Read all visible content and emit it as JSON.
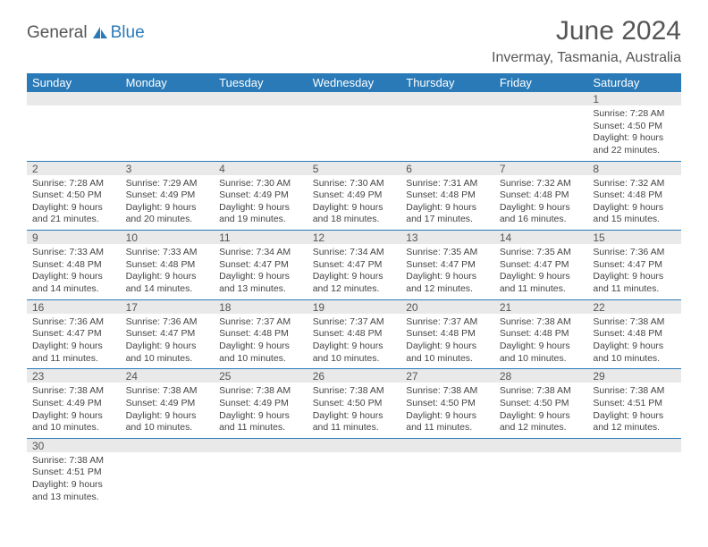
{
  "logo": {
    "text1": "General",
    "text2": "Blue"
  },
  "title": "June 2024",
  "location": "Invermay, Tasmania, Australia",
  "columns": [
    "Sunday",
    "Monday",
    "Tuesday",
    "Wednesday",
    "Thursday",
    "Friday",
    "Saturday"
  ],
  "colors": {
    "header_bg": "#2a7ab8",
    "header_fg": "#ffffff",
    "daynum_bg": "#e9e9e9",
    "row_border": "#2a7ab8",
    "logo_accent": "#2a7ab8",
    "text": "#444444"
  },
  "weeks": [
    [
      null,
      null,
      null,
      null,
      null,
      null,
      {
        "n": "1",
        "sunrise": "Sunrise: 7:28 AM",
        "sunset": "Sunset: 4:50 PM",
        "day1": "Daylight: 9 hours",
        "day2": "and 22 minutes."
      }
    ],
    [
      {
        "n": "2",
        "sunrise": "Sunrise: 7:28 AM",
        "sunset": "Sunset: 4:50 PM",
        "day1": "Daylight: 9 hours",
        "day2": "and 21 minutes."
      },
      {
        "n": "3",
        "sunrise": "Sunrise: 7:29 AM",
        "sunset": "Sunset: 4:49 PM",
        "day1": "Daylight: 9 hours",
        "day2": "and 20 minutes."
      },
      {
        "n": "4",
        "sunrise": "Sunrise: 7:30 AM",
        "sunset": "Sunset: 4:49 PM",
        "day1": "Daylight: 9 hours",
        "day2": "and 19 minutes."
      },
      {
        "n": "5",
        "sunrise": "Sunrise: 7:30 AM",
        "sunset": "Sunset: 4:49 PM",
        "day1": "Daylight: 9 hours",
        "day2": "and 18 minutes."
      },
      {
        "n": "6",
        "sunrise": "Sunrise: 7:31 AM",
        "sunset": "Sunset: 4:48 PM",
        "day1": "Daylight: 9 hours",
        "day2": "and 17 minutes."
      },
      {
        "n": "7",
        "sunrise": "Sunrise: 7:32 AM",
        "sunset": "Sunset: 4:48 PM",
        "day1": "Daylight: 9 hours",
        "day2": "and 16 minutes."
      },
      {
        "n": "8",
        "sunrise": "Sunrise: 7:32 AM",
        "sunset": "Sunset: 4:48 PM",
        "day1": "Daylight: 9 hours",
        "day2": "and 15 minutes."
      }
    ],
    [
      {
        "n": "9",
        "sunrise": "Sunrise: 7:33 AM",
        "sunset": "Sunset: 4:48 PM",
        "day1": "Daylight: 9 hours",
        "day2": "and 14 minutes."
      },
      {
        "n": "10",
        "sunrise": "Sunrise: 7:33 AM",
        "sunset": "Sunset: 4:48 PM",
        "day1": "Daylight: 9 hours",
        "day2": "and 14 minutes."
      },
      {
        "n": "11",
        "sunrise": "Sunrise: 7:34 AM",
        "sunset": "Sunset: 4:47 PM",
        "day1": "Daylight: 9 hours",
        "day2": "and 13 minutes."
      },
      {
        "n": "12",
        "sunrise": "Sunrise: 7:34 AM",
        "sunset": "Sunset: 4:47 PM",
        "day1": "Daylight: 9 hours",
        "day2": "and 12 minutes."
      },
      {
        "n": "13",
        "sunrise": "Sunrise: 7:35 AM",
        "sunset": "Sunset: 4:47 PM",
        "day1": "Daylight: 9 hours",
        "day2": "and 12 minutes."
      },
      {
        "n": "14",
        "sunrise": "Sunrise: 7:35 AM",
        "sunset": "Sunset: 4:47 PM",
        "day1": "Daylight: 9 hours",
        "day2": "and 11 minutes."
      },
      {
        "n": "15",
        "sunrise": "Sunrise: 7:36 AM",
        "sunset": "Sunset: 4:47 PM",
        "day1": "Daylight: 9 hours",
        "day2": "and 11 minutes."
      }
    ],
    [
      {
        "n": "16",
        "sunrise": "Sunrise: 7:36 AM",
        "sunset": "Sunset: 4:47 PM",
        "day1": "Daylight: 9 hours",
        "day2": "and 11 minutes."
      },
      {
        "n": "17",
        "sunrise": "Sunrise: 7:36 AM",
        "sunset": "Sunset: 4:47 PM",
        "day1": "Daylight: 9 hours",
        "day2": "and 10 minutes."
      },
      {
        "n": "18",
        "sunrise": "Sunrise: 7:37 AM",
        "sunset": "Sunset: 4:48 PM",
        "day1": "Daylight: 9 hours",
        "day2": "and 10 minutes."
      },
      {
        "n": "19",
        "sunrise": "Sunrise: 7:37 AM",
        "sunset": "Sunset: 4:48 PM",
        "day1": "Daylight: 9 hours",
        "day2": "and 10 minutes."
      },
      {
        "n": "20",
        "sunrise": "Sunrise: 7:37 AM",
        "sunset": "Sunset: 4:48 PM",
        "day1": "Daylight: 9 hours",
        "day2": "and 10 minutes."
      },
      {
        "n": "21",
        "sunrise": "Sunrise: 7:38 AM",
        "sunset": "Sunset: 4:48 PM",
        "day1": "Daylight: 9 hours",
        "day2": "and 10 minutes."
      },
      {
        "n": "22",
        "sunrise": "Sunrise: 7:38 AM",
        "sunset": "Sunset: 4:48 PM",
        "day1": "Daylight: 9 hours",
        "day2": "and 10 minutes."
      }
    ],
    [
      {
        "n": "23",
        "sunrise": "Sunrise: 7:38 AM",
        "sunset": "Sunset: 4:49 PM",
        "day1": "Daylight: 9 hours",
        "day2": "and 10 minutes."
      },
      {
        "n": "24",
        "sunrise": "Sunrise: 7:38 AM",
        "sunset": "Sunset: 4:49 PM",
        "day1": "Daylight: 9 hours",
        "day2": "and 10 minutes."
      },
      {
        "n": "25",
        "sunrise": "Sunrise: 7:38 AM",
        "sunset": "Sunset: 4:49 PM",
        "day1": "Daylight: 9 hours",
        "day2": "and 11 minutes."
      },
      {
        "n": "26",
        "sunrise": "Sunrise: 7:38 AM",
        "sunset": "Sunset: 4:50 PM",
        "day1": "Daylight: 9 hours",
        "day2": "and 11 minutes."
      },
      {
        "n": "27",
        "sunrise": "Sunrise: 7:38 AM",
        "sunset": "Sunset: 4:50 PM",
        "day1": "Daylight: 9 hours",
        "day2": "and 11 minutes."
      },
      {
        "n": "28",
        "sunrise": "Sunrise: 7:38 AM",
        "sunset": "Sunset: 4:50 PM",
        "day1": "Daylight: 9 hours",
        "day2": "and 12 minutes."
      },
      {
        "n": "29",
        "sunrise": "Sunrise: 7:38 AM",
        "sunset": "Sunset: 4:51 PM",
        "day1": "Daylight: 9 hours",
        "day2": "and 12 minutes."
      }
    ],
    [
      {
        "n": "30",
        "sunrise": "Sunrise: 7:38 AM",
        "sunset": "Sunset: 4:51 PM",
        "day1": "Daylight: 9 hours",
        "day2": "and 13 minutes."
      },
      null,
      null,
      null,
      null,
      null,
      null
    ]
  ]
}
